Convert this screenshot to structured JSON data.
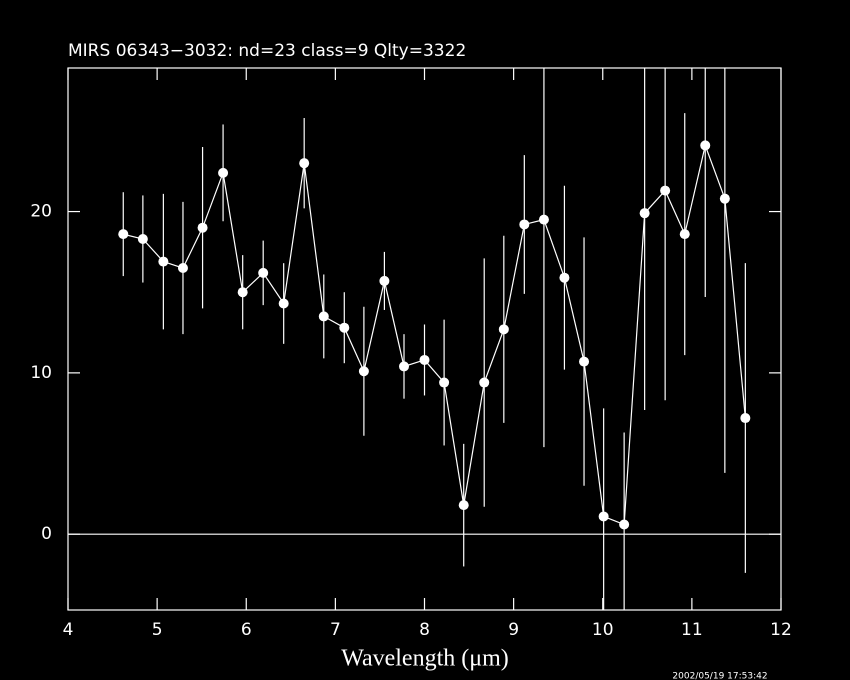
{
  "chart_data": {
    "type": "errorbar",
    "title": "MIRS 06343−3032:    nd=23    class=9    Qlty=3322",
    "xlabel": "Wavelength (μm)",
    "timestamp": "2002/05/19 17:53:42",
    "x": [
      4.62,
      4.84,
      5.07,
      5.29,
      5.51,
      5.74,
      5.96,
      6.19,
      6.42,
      6.65,
      6.87,
      7.1,
      7.32,
      7.55,
      7.77,
      8.0,
      8.22,
      8.44,
      8.67,
      8.89,
      9.12,
      9.34,
      9.57,
      9.79,
      10.01,
      10.24,
      10.47,
      10.7,
      10.92,
      11.15,
      11.37,
      11.6
    ],
    "values": [
      18.6,
      18.3,
      16.9,
      16.5,
      19.0,
      22.4,
      15.0,
      16.2,
      14.3,
      23.0,
      13.5,
      12.8,
      10.1,
      15.7,
      10.4,
      10.8,
      9.4,
      1.8,
      9.4,
      12.7,
      19.2,
      19.5,
      15.9,
      10.7,
      1.1,
      0.6,
      19.9,
      21.3,
      18.6,
      24.1,
      20.8,
      7.2
    ],
    "errors": [
      2.6,
      2.7,
      4.2,
      4.1,
      5.0,
      3.0,
      2.3,
      2.0,
      2.5,
      2.8,
      2.6,
      2.2,
      4.0,
      1.8,
      2.0,
      2.2,
      3.9,
      3.8,
      7.7,
      5.8,
      4.3,
      14.1,
      5.7,
      7.7,
      6.7,
      5.7,
      12.2,
      13.0,
      7.5,
      9.4,
      17.0,
      9.6
    ],
    "color": "#ffffff",
    "xlim": [
      4,
      12
    ],
    "xticks": [
      4,
      5,
      6,
      7,
      8,
      9,
      10,
      11,
      12
    ],
    "ylim": [
      -4.7,
      28.9
    ],
    "yticks": [
      0,
      10,
      20
    ],
    "hline": 0
  }
}
